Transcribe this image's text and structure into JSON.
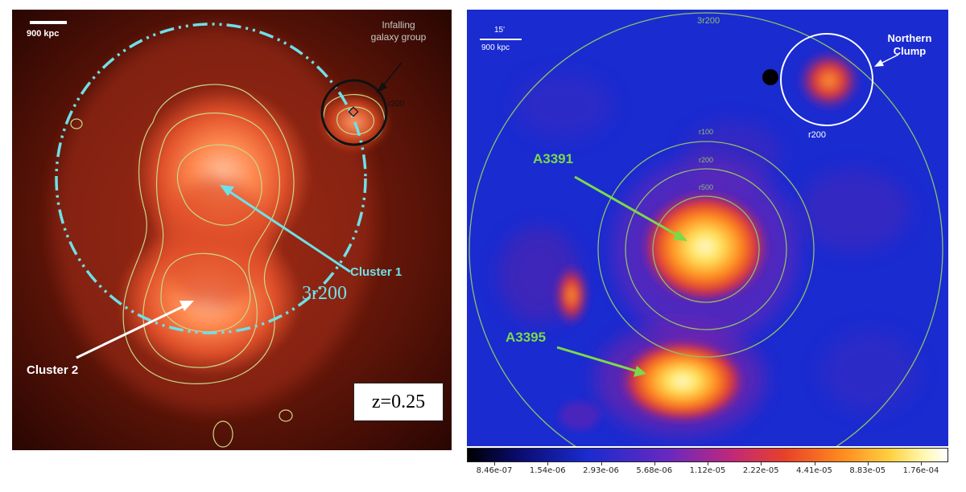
{
  "left_panel": {
    "scale_bar_label": "900 kpc",
    "group_label": "Infalling galaxy group",
    "group_label_line1": "Infalling",
    "group_label_line2": "galaxy group",
    "r200_label": "r200",
    "cluster1_label": "Cluster 1",
    "cluster2_label": "Cluster 2",
    "radius_label": "3r200",
    "redshift_label": "z=0.25",
    "colors": {
      "cyan": "#6fe0e8",
      "contour": "#c8d88a",
      "bg_dark": "#3a0a04",
      "core": "#ffb08a"
    }
  },
  "right_panel": {
    "scale_angle_label": "15'",
    "scale_bar_label": "900 kpc",
    "outer_circle_label": "3r200",
    "r100_label": "r100",
    "r200_label": "r200",
    "r500_label": "r500",
    "clump_r200_label": "r200",
    "northern_clump_line1": "Northern",
    "northern_clump_line2": "Clump",
    "a3391_label": "A3391",
    "a3395_label": "A3395",
    "colors": {
      "green": "#7cd94a",
      "circle": "#8fbf6a",
      "bg_blue": "#1a2bd0",
      "hot": "#fff7a0"
    }
  },
  "colorbar": {
    "ticks": [
      "8.46e-07",
      "1.54e-06",
      "2.93e-06",
      "5.68e-06",
      "1.12e-05",
      "2.22e-05",
      "4.41e-05",
      "8.83e-05",
      "1.76e-04"
    ]
  }
}
